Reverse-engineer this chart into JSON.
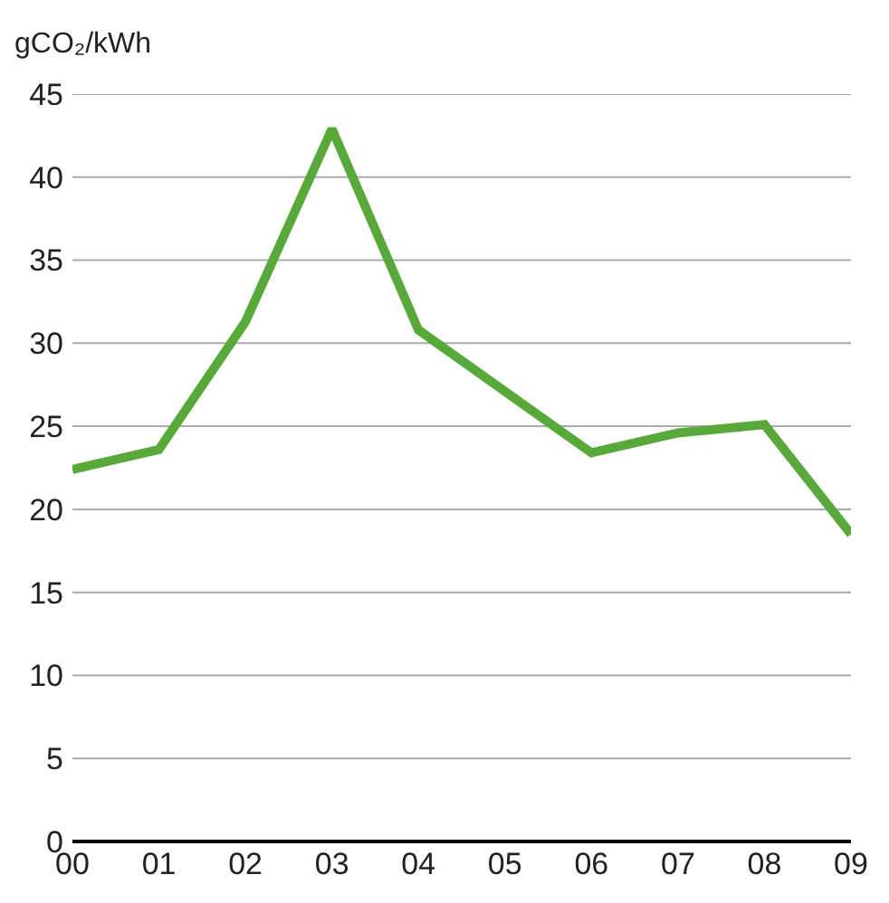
{
  "chart_data": {
    "type": "line",
    "ylabel": "gCO₂/kWh",
    "categories": [
      "00",
      "01",
      "02",
      "03",
      "04",
      "05",
      "06",
      "07",
      "08",
      "09"
    ],
    "series": [
      {
        "color": "#58a83a",
        "values": [
          22.4,
          23.6,
          31.3,
          42.9,
          30.8,
          27.1,
          23.4,
          24.6,
          25.1,
          18.5
        ]
      }
    ],
    "ylim": [
      0,
      45
    ],
    "yticks": [
      0,
      5,
      10,
      15,
      20,
      25,
      30,
      35,
      40,
      45
    ],
    "grid": "y",
    "legend": false,
    "marker": "none",
    "line_style": "solid"
  }
}
